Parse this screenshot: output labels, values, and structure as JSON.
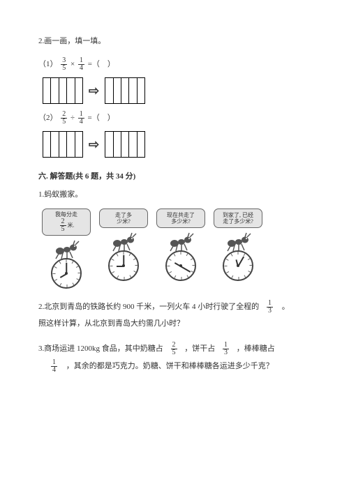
{
  "q2": {
    "title": "2.画一画，填一填。",
    "p1_prefix": "（1）",
    "p1_expr_a_n": "3",
    "p1_expr_a_d": "5",
    "p1_op": "×",
    "p1_expr_b_n": "1",
    "p1_expr_b_d": "4",
    "p1_suffix": "=（　）",
    "p2_prefix": "（2）",
    "p2_expr_a_n": "2",
    "p2_expr_a_d": "5",
    "p2_op": "÷",
    "p2_expr_b_n": "1",
    "p2_expr_b_d": "4",
    "p2_suffix": "=（　）",
    "arrow": "⇨",
    "rect_cols": 5
  },
  "section6": {
    "heading": "六. 解答题(共 6 题，共 34 分)",
    "q1_title": "1.蚂蚁搬家。",
    "bubbles": [
      {
        "l1": "我每分走",
        "frac_n": "2",
        "frac_d": "5",
        "l2": "米."
      },
      {
        "l1": "走了多",
        "l2": "少米?"
      },
      {
        "l1": "现在共走了",
        "l2": "多少米?"
      },
      {
        "l1": "到家了, 已经",
        "l2": "走了多少米?"
      }
    ],
    "clocks": [
      {
        "h_deg": 240,
        "m_deg": 0
      },
      {
        "h_deg": 270,
        "m_deg": 0
      },
      {
        "h_deg": 300,
        "m_deg": 120
      },
      {
        "h_deg": 345,
        "m_deg": 30
      }
    ],
    "q2_a": "2.北京到青岛的铁路长约 900 千米，一列火车 4 小时行驶了全程的",
    "q2_frac_n": "1",
    "q2_frac_d": "3",
    "q2_b": "。",
    "q2_line2": "照这样计算，从北京到青岛大约需几小时？",
    "q3_a": "3.商场运进 1200kg 食品，其中奶糖占",
    "q3_f1_n": "2",
    "q3_f1_d": "5",
    "q3_b": "，饼干占",
    "q3_f2_n": "1",
    "q3_f2_d": "3",
    "q3_c": "，棒棒糖占",
    "q3_f3_n": "1",
    "q3_f3_d": "4",
    "q3_d": "，其余的都是巧克力。奶糖、饼干和棒棒糖各运进多少千克？"
  },
  "style": {
    "text_color": "#333333",
    "bg": "#ffffff",
    "bubble_bg": "#e5e5e5"
  }
}
